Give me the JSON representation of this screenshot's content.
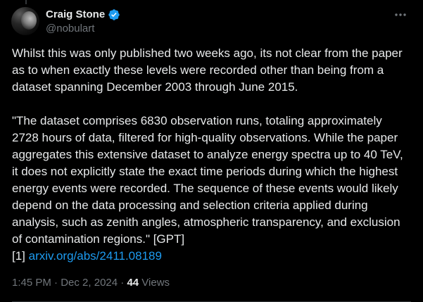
{
  "author": {
    "display_name": "Craig Stone",
    "handle": "@nobulart",
    "verified": true,
    "verified_color": "#1d9bf0",
    "avatar_icon": "moon-avatar"
  },
  "tweet": {
    "paragraph_1": "Whilst this was only published two weeks ago, its not clear from the paper as to when exactly these levels were recorded other than being from a dataset spanning December 2003 through June 2015.",
    "paragraph_2": "\"The dataset comprises 6830 observation runs, totaling approximately 2728 hours of data, filtered for high-quality observations. While the paper aggregates this extensive dataset to analyze energy spectra up to 40 TeV, it does not explicitly state the exact time periods during which the highest energy events were recorded. The sequence of these events would likely depend on the data processing and selection criteria applied during analysis, such as zenith angles, atmospheric transparency, and exclusion of contamination regions.\" [GPT]",
    "reference_prefix": "[1] ",
    "link_text": "arxiv.org/abs/2411.08189",
    "link_color": "#1d9bf0"
  },
  "meta": {
    "time": "1:45 PM",
    "separator": " · ",
    "date": "Dec 2, 2024",
    "views_count": "44",
    "views_label": " Views"
  },
  "colors": {
    "background": "#000000",
    "text_primary": "#e7e9ea",
    "text_secondary": "#71767b",
    "divider": "#2f3336"
  },
  "icons": {
    "verified": "verified-badge-icon",
    "more": "more-options-icon"
  }
}
